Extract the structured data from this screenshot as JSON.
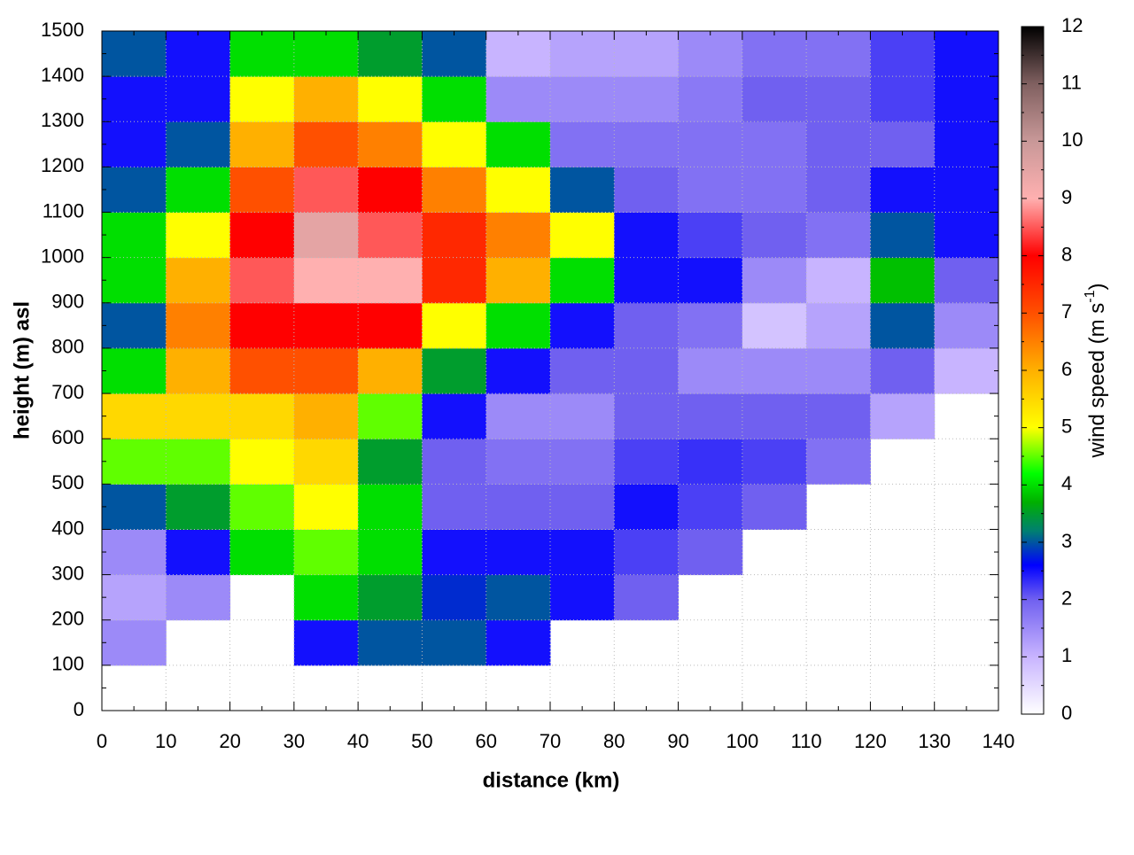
{
  "chart_data": {
    "type": "heatmap",
    "xlabel": "distance (km)",
    "ylabel": "height (m) asl",
    "colorbar_label": {
      "text": "wind speed (m s",
      "sup": "-1",
      "end": ")"
    },
    "x": [
      5,
      15,
      25,
      35,
      45,
      55,
      65,
      75,
      85,
      95,
      105,
      115,
      125,
      135
    ],
    "y": [
      50,
      150,
      250,
      350,
      450,
      550,
      650,
      750,
      850,
      950,
      1050,
      1150,
      1250,
      1350,
      1450
    ],
    "values": [
      [
        null,
        null,
        null,
        null,
        null,
        null,
        null,
        null,
        null,
        null,
        null,
        null,
        null,
        null
      ],
      [
        1.5,
        null,
        null,
        2.5,
        3,
        3,
        2.5,
        null,
        null,
        null,
        null,
        null,
        null,
        null
      ],
      [
        1.2,
        1.5,
        null,
        4,
        3.5,
        2.8,
        3,
        2.5,
        2,
        null,
        null,
        null,
        null,
        null
      ],
      [
        1.5,
        2.5,
        4,
        4.5,
        4,
        2.5,
        2.5,
        2.5,
        2.2,
        2,
        null,
        null,
        null,
        null
      ],
      [
        3,
        3.5,
        4.5,
        5,
        4,
        2,
        2,
        2,
        2.5,
        2.2,
        2,
        null,
        null,
        null
      ],
      [
        4.5,
        4.5,
        5,
        5.5,
        3.5,
        2,
        1.8,
        1.8,
        2.2,
        2.3,
        2.2,
        1.8,
        null,
        null
      ],
      [
        5.5,
        5.5,
        5.5,
        6,
        4.5,
        2.5,
        1.5,
        1.5,
        2,
        2,
        2,
        2,
        1.2,
        null
      ],
      [
        4,
        6,
        7,
        7,
        6,
        3.5,
        2.5,
        2,
        2,
        1.5,
        1.5,
        1.5,
        2,
        1
      ],
      [
        3,
        6.5,
        8,
        8,
        8,
        5,
        4,
        2.5,
        2,
        1.8,
        0.8,
        1.2,
        3,
        1.5
      ],
      [
        4,
        6,
        8.5,
        9,
        9,
        7.5,
        6,
        4,
        2.5,
        2.5,
        1.5,
        1,
        3.8,
        2
      ],
      [
        4,
        5,
        8,
        9.5,
        8.5,
        7.5,
        6.5,
        5,
        2.5,
        2.2,
        2,
        1.8,
        3,
        2.5
      ],
      [
        3,
        4,
        7,
        8.5,
        8,
        6.5,
        5,
        3,
        2,
        1.8,
        1.8,
        2,
        2.5,
        2.5
      ],
      [
        2.5,
        3,
        6,
        7,
        6.5,
        5,
        4,
        1.8,
        1.8,
        1.8,
        1.8,
        2,
        2,
        2.5
      ],
      [
        2.5,
        2.5,
        5,
        6,
        5,
        4,
        1.5,
        1.5,
        1.5,
        1.7,
        2,
        2,
        2.2,
        2.5
      ],
      [
        3,
        2.5,
        4,
        4,
        3.5,
        3,
        1,
        1.2,
        1.2,
        1.5,
        1.8,
        1.8,
        2.2,
        2.5
      ]
    ],
    "xlim": [
      0,
      140
    ],
    "ylim": [
      0,
      1500
    ],
    "xticks": [
      0,
      10,
      20,
      30,
      40,
      50,
      60,
      70,
      80,
      90,
      100,
      110,
      120,
      130,
      140
    ],
    "yticks": [
      0,
      100,
      200,
      300,
      400,
      500,
      600,
      700,
      800,
      900,
      1000,
      1100,
      1200,
      1300,
      1400,
      1500
    ],
    "clim": [
      0,
      12
    ],
    "cticks": [
      0,
      1,
      2,
      3,
      4,
      5,
      6,
      7,
      8,
      9,
      10,
      11,
      12
    ],
    "colorscale": [
      [
        0,
        "#ffffff"
      ],
      [
        1,
        "#c8b4ff"
      ],
      [
        2,
        "#7060f0"
      ],
      [
        2.6,
        "#0000ff"
      ],
      [
        3.2,
        "#008070"
      ],
      [
        3.7,
        "#00b000"
      ],
      [
        4.2,
        "#00ff00"
      ],
      [
        5,
        "#ffff00"
      ],
      [
        6,
        "#ffb000"
      ],
      [
        7,
        "#ff5000"
      ],
      [
        8,
        "#ff0000"
      ],
      [
        9,
        "#ffb0b0"
      ],
      [
        10,
        "#c89898"
      ],
      [
        11,
        "#806060"
      ],
      [
        12,
        "#000000"
      ]
    ],
    "grid": true
  }
}
